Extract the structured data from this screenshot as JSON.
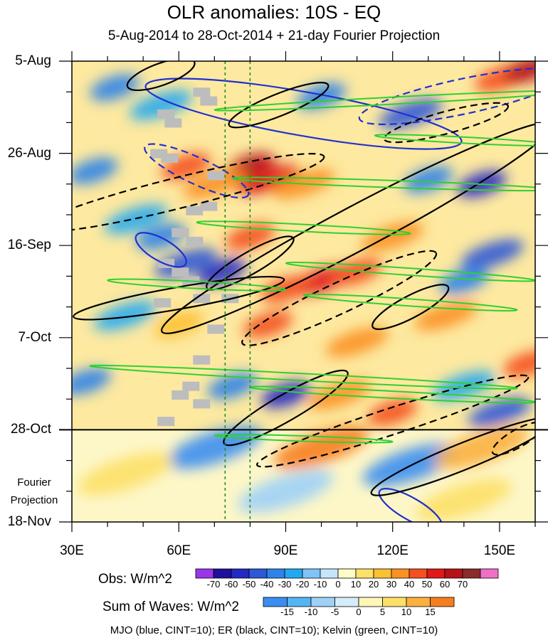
{
  "chart_data": {
    "type": "heatmap",
    "title": "OLR anomalies: 10S - EQ",
    "subtitle": "5-Aug-2014 to 28-Oct-2014 + 21-day Fourier Projection",
    "x_ticks": [
      "30E",
      "60E",
      "90E",
      "120E",
      "150E"
    ],
    "x_tick_values": [
      30,
      60,
      90,
      120,
      150
    ],
    "xlim": [
      30,
      160
    ],
    "y_ticks": [
      "5-Aug",
      "26-Aug",
      "16-Sep",
      "7-Oct",
      "28-Oct",
      "18-Nov"
    ],
    "y_tick_day_offsets": [
      0,
      21,
      42,
      63,
      84,
      105
    ],
    "ylim_days": [
      0,
      105
    ],
    "observed_end_day": 84,
    "projection_label_line1": "Fourier",
    "projection_label_line2": "Projection",
    "reference_lines_lon": [
      73,
      80
    ],
    "obs_colorbar": {
      "label": "Obs: W/m^2",
      "levels": [
        "-70",
        "-60",
        "-50",
        "-40",
        "-30",
        "-20",
        "-10",
        "0",
        "10",
        "20",
        "30",
        "40",
        "50",
        "60",
        "70"
      ],
      "colors": [
        "#9b35e8",
        "#1f0f9c",
        "#2329c4",
        "#2d58d6",
        "#2f83e8",
        "#22a8f0",
        "#7fc4f5",
        "#c5e5fb",
        "#fefbc8",
        "#fde068",
        "#fdc030",
        "#fb9124",
        "#f45020",
        "#e01818",
        "#b5121a",
        "#8a2a2a",
        "#f070c8"
      ]
    },
    "waves_colorbar": {
      "label": "Sum of Waves: W/m^2",
      "levels": [
        "-15",
        "-10",
        "-5",
        "0",
        "5",
        "10",
        "15"
      ],
      "colors": [
        "#3a8ef0",
        "#55b5f2",
        "#9fd0f7",
        "#d6ecfb",
        "#fff7b8",
        "#fde068",
        "#fbb040",
        "#f77e1e"
      ]
    },
    "footer": "MJO (blue, CINT=10); ER (black, CINT=10); Kelvin (green, CINT=10)",
    "anomaly_cells": [
      {
        "lon": 42,
        "day": 6,
        "value": -40
      },
      {
        "lon": 55,
        "day": 10,
        "value": -30
      },
      {
        "lon": 100,
        "day": 8,
        "value": -40
      },
      {
        "lon": 125,
        "day": 12,
        "value": -50
      },
      {
        "lon": 150,
        "day": 4,
        "value": 40
      },
      {
        "lon": 158,
        "day": 2,
        "value": 60
      },
      {
        "lon": 62,
        "day": 24,
        "value": 40
      },
      {
        "lon": 80,
        "day": 24,
        "value": 60
      },
      {
        "lon": 85,
        "day": 27,
        "value": 50
      },
      {
        "lon": 70,
        "day": 28,
        "value": 30
      },
      {
        "lon": 95,
        "day": 28,
        "value": 30
      },
      {
        "lon": 145,
        "day": 28,
        "value": -60
      },
      {
        "lon": 130,
        "day": 27,
        "value": -40
      },
      {
        "lon": 36,
        "day": 25,
        "value": -40
      },
      {
        "lon": 55,
        "day": 40,
        "value": -40
      },
      {
        "lon": 80,
        "day": 40,
        "value": 40
      },
      {
        "lon": 72,
        "day": 48,
        "value": -60
      },
      {
        "lon": 62,
        "day": 46,
        "value": -50
      },
      {
        "lon": 100,
        "day": 50,
        "value": 50
      },
      {
        "lon": 110,
        "day": 48,
        "value": 40
      },
      {
        "lon": 90,
        "day": 52,
        "value": 40
      },
      {
        "lon": 148,
        "day": 44,
        "value": -50
      },
      {
        "lon": 140,
        "day": 50,
        "value": -40
      },
      {
        "lon": 120,
        "day": 40,
        "value": 30
      },
      {
        "lon": 85,
        "day": 60,
        "value": 40
      },
      {
        "lon": 135,
        "day": 58,
        "value": 30
      },
      {
        "lon": 60,
        "day": 60,
        "value": 20
      },
      {
        "lon": 34,
        "day": 73,
        "value": -40
      },
      {
        "lon": 90,
        "day": 76,
        "value": -60
      },
      {
        "lon": 75,
        "day": 74,
        "value": -40
      },
      {
        "lon": 105,
        "day": 76,
        "value": 30
      },
      {
        "lon": 120,
        "day": 80,
        "value": 40
      },
      {
        "lon": 150,
        "day": 80,
        "value": -50
      },
      {
        "lon": 140,
        "day": 74,
        "value": -30
      },
      {
        "lon": 158,
        "day": 69,
        "value": 40
      },
      {
        "lon": 45,
        "day": 58,
        "value": -30
      },
      {
        "lon": 48,
        "day": 36,
        "value": -30
      },
      {
        "lon": 110,
        "day": 64,
        "value": 30
      },
      {
        "lon": 70,
        "day": 88,
        "value": -20
      },
      {
        "lon": 100,
        "day": 88,
        "value": 15
      },
      {
        "lon": 125,
        "day": 92,
        "value": -20
      },
      {
        "lon": 145,
        "day": 88,
        "value": 10
      },
      {
        "lon": 45,
        "day": 94,
        "value": 5
      },
      {
        "lon": 90,
        "day": 98,
        "value": -10
      },
      {
        "lon": 140,
        "day": 100,
        "value": 5
      }
    ],
    "wave_contours": [
      {
        "type": "MJO",
        "color": "#2030d0",
        "sign": "positive",
        "cx": 95,
        "cy": 12,
        "rx": 45,
        "ry": 5,
        "tilt_deg": 10
      },
      {
        "type": "MJO",
        "color": "#2030d0",
        "sign": "negative",
        "cx": 140,
        "cy": 8,
        "rx": 30,
        "ry": 4,
        "tilt_deg": -12
      },
      {
        "type": "MJO",
        "color": "#2030d0",
        "sign": "negative",
        "cx": 65,
        "cy": 25,
        "rx": 16,
        "ry": 3,
        "tilt_deg": 25
      },
      {
        "type": "MJO",
        "color": "#2030d0",
        "sign": "positive",
        "cx": 55,
        "cy": 43,
        "rx": 8,
        "ry": 2.5,
        "tilt_deg": 30
      },
      {
        "type": "MJO",
        "color": "#2030d0",
        "sign": "positive",
        "cx": 125,
        "cy": 102,
        "rx": 10,
        "ry": 2.5,
        "tilt_deg": 30
      },
      {
        "type": "ER",
        "color": "#000000",
        "sign": "positive",
        "cx": 55,
        "cy": 3,
        "rx": 10,
        "ry": 2.5,
        "tilt_deg": -20
      },
      {
        "type": "ER",
        "color": "#000000",
        "sign": "positive",
        "cx": 88,
        "cy": 10,
        "rx": 15,
        "ry": 2.5,
        "tilt_deg": -22
      },
      {
        "type": "ER",
        "color": "#000000",
        "sign": "negative",
        "cx": 135,
        "cy": 14,
        "rx": 18,
        "ry": 2.5,
        "tilt_deg": -15
      },
      {
        "type": "ER",
        "color": "#000000",
        "sign": "negative",
        "cx": 60,
        "cy": 30,
        "rx": 42,
        "ry": 3.5,
        "tilt_deg": -14
      },
      {
        "type": "ER",
        "color": "#000000",
        "sign": "positive",
        "cx": 110,
        "cy": 38,
        "rx": 62,
        "ry": 5,
        "tilt_deg": -28
      },
      {
        "type": "ER",
        "color": "#000000",
        "sign": "positive",
        "cx": 80,
        "cy": 46,
        "rx": 14,
        "ry": 2.5,
        "tilt_deg": -30
      },
      {
        "type": "ER",
        "color": "#000000",
        "sign": "negative",
        "cx": 105,
        "cy": 54,
        "rx": 30,
        "ry": 3.5,
        "tilt_deg": -25
      },
      {
        "type": "ER",
        "color": "#000000",
        "sign": "positive",
        "cx": 125,
        "cy": 56,
        "rx": 12,
        "ry": 2.5,
        "tilt_deg": -28
      },
      {
        "type": "ER",
        "color": "#000000",
        "sign": "positive",
        "cx": 60,
        "cy": 54,
        "rx": 30,
        "ry": 2.5,
        "tilt_deg": -10
      },
      {
        "type": "ER",
        "color": "#000000",
        "sign": "positive",
        "cx": 90,
        "cy": 79,
        "rx": 20,
        "ry": 3,
        "tilt_deg": -30
      },
      {
        "type": "ER",
        "color": "#000000",
        "sign": "negative",
        "cx": 120,
        "cy": 82,
        "rx": 40,
        "ry": 3,
        "tilt_deg": -18
      },
      {
        "type": "ER",
        "color": "#000000",
        "sign": "positive",
        "cx": 140,
        "cy": 90,
        "rx": 28,
        "ry": 3,
        "tilt_deg": -22
      },
      {
        "type": "ER",
        "color": "#000000",
        "sign": "negative",
        "cx": 155,
        "cy": 86,
        "rx": 8,
        "ry": 2,
        "tilt_deg": -30
      },
      {
        "type": "Kelvin",
        "color": "#30d030",
        "sign": "positive",
        "cx": 120,
        "cy": 9,
        "rx": 50,
        "ry": 0.8,
        "tilt_deg": -3
      },
      {
        "type": "Kelvin",
        "color": "#30d030",
        "sign": "positive",
        "cx": 140,
        "cy": 18,
        "rx": 25,
        "ry": 0.7,
        "tilt_deg": 3
      },
      {
        "type": "Kelvin",
        "color": "#30d030",
        "sign": "positive",
        "cx": 120,
        "cy": 28,
        "rx": 45,
        "ry": 0.8,
        "tilt_deg": 2
      },
      {
        "type": "Kelvin",
        "color": "#30d030",
        "sign": "positive",
        "cx": 95,
        "cy": 38,
        "rx": 30,
        "ry": 0.8,
        "tilt_deg": 3
      },
      {
        "type": "Kelvin",
        "color": "#30d030",
        "sign": "positive",
        "cx": 125,
        "cy": 48,
        "rx": 35,
        "ry": 0.8,
        "tilt_deg": 4
      },
      {
        "type": "Kelvin",
        "color": "#30d030",
        "sign": "positive",
        "cx": 65,
        "cy": 51,
        "rx": 25,
        "ry": 0.8,
        "tilt_deg": 3
      },
      {
        "type": "Kelvin",
        "color": "#30d030",
        "sign": "positive",
        "cx": 125,
        "cy": 55,
        "rx": 30,
        "ry": 0.8,
        "tilt_deg": 4
      },
      {
        "type": "Kelvin",
        "color": "#30d030",
        "sign": "positive",
        "cx": 95,
        "cy": 72,
        "rx": 60,
        "ry": 0.8,
        "tilt_deg": 3
      },
      {
        "type": "Kelvin",
        "color": "#30d030",
        "sign": "positive",
        "cx": 120,
        "cy": 76,
        "rx": 40,
        "ry": 0.8,
        "tilt_deg": 3
      },
      {
        "type": "Kelvin",
        "color": "#30d030",
        "sign": "positive",
        "cx": 95,
        "cy": 86,
        "rx": 25,
        "ry": 0.6,
        "tilt_deg": 2
      }
    ],
    "missing_cells": [
      {
        "lon": 66,
        "day": 7
      },
      {
        "lon": 68,
        "day": 9
      },
      {
        "lon": 56,
        "day": 12
      },
      {
        "lon": 58,
        "day": 14
      },
      {
        "lon": 54,
        "day": 21
      },
      {
        "lon": 57,
        "day": 22
      },
      {
        "lon": 70,
        "day": 26
      },
      {
        "lon": 68,
        "day": 33
      },
      {
        "lon": 64,
        "day": 34
      },
      {
        "lon": 60,
        "day": 39
      },
      {
        "lon": 64,
        "day": 41
      },
      {
        "lon": 56,
        "day": 46
      },
      {
        "lon": 60,
        "day": 48
      },
      {
        "lon": 63,
        "day": 50
      },
      {
        "lon": 66,
        "day": 54
      },
      {
        "lon": 74,
        "day": 54
      },
      {
        "lon": 55,
        "day": 55
      },
      {
        "lon": 70,
        "day": 61
      },
      {
        "lon": 66,
        "day": 68
      },
      {
        "lon": 63,
        "day": 74
      },
      {
        "lon": 60,
        "day": 76
      },
      {
        "lon": 66,
        "day": 78
      },
      {
        "lon": 56,
        "day": 82
      }
    ]
  }
}
